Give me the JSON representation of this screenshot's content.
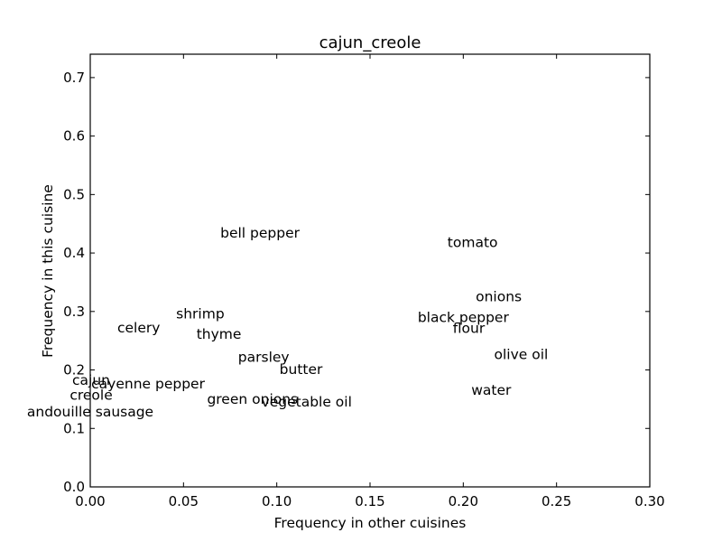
{
  "chart_data": {
    "type": "scatter",
    "title": "cajun_creole",
    "xlabel": "Frequency in other cuisines",
    "ylabel": "Frequency in this cuisine",
    "xlim": [
      0.0,
      0.3
    ],
    "ylim": [
      0.0,
      0.74
    ],
    "xticks": [
      "0.00",
      "0.05",
      "0.10",
      "0.15",
      "0.20",
      "0.25",
      "0.30"
    ],
    "yticks": [
      "0.0",
      "0.1",
      "0.2",
      "0.3",
      "0.4",
      "0.5",
      "0.6",
      "0.7"
    ],
    "grid": false,
    "points": [
      {
        "label": "bell pepper",
        "x": 0.091,
        "y": 0.434
      },
      {
        "label": "tomato",
        "x": 0.205,
        "y": 0.418
      },
      {
        "label": "onions",
        "x": 0.219,
        "y": 0.325
      },
      {
        "label": "black pepper",
        "x": 0.2,
        "y": 0.29
      },
      {
        "label": "flour",
        "x": 0.203,
        "y": 0.271
      },
      {
        "label": "olive oil",
        "x": 0.231,
        "y": 0.226
      },
      {
        "label": "shrimp",
        "x": 0.059,
        "y": 0.296
      },
      {
        "label": "celery",
        "x": 0.026,
        "y": 0.272
      },
      {
        "label": "thyme",
        "x": 0.069,
        "y": 0.261
      },
      {
        "label": "parsley",
        "x": 0.093,
        "y": 0.222
      },
      {
        "label": "butter",
        "x": 0.113,
        "y": 0.201
      },
      {
        "label": "cajun",
        "x": 0.0005,
        "y": 0.182
      },
      {
        "label": "cayenne pepper",
        "x": 0.031,
        "y": 0.176
      },
      {
        "label": "creole",
        "x": 0.0005,
        "y": 0.157
      },
      {
        "label": "water",
        "x": 0.215,
        "y": 0.165
      },
      {
        "label": "green onions",
        "x": 0.087,
        "y": 0.15
      },
      {
        "label": "vegetable oil",
        "x": 0.116,
        "y": 0.145
      },
      {
        "label": "andouille sausage",
        "x": 0.0,
        "y": 0.128
      }
    ]
  }
}
